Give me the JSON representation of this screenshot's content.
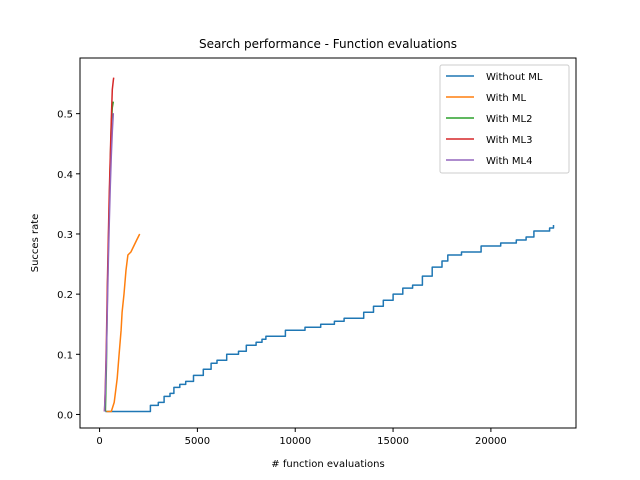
{
  "chart_data": {
    "type": "line",
    "title": "Search performance - Function evaluations",
    "xlabel": "# function evaluations",
    "ylabel": "Succes rate",
    "xlim": [
      -1000,
      24350
    ],
    "ylim": [
      -0.0225,
      0.5925
    ],
    "xticks": [
      0,
      5000,
      10000,
      15000,
      20000
    ],
    "xtick_labels": [
      "0",
      "5000",
      "10000",
      "15000",
      "20000"
    ],
    "yticks": [
      0.0,
      0.1,
      0.2,
      0.3,
      0.4,
      0.5
    ],
    "ytick_labels": [
      "0.0",
      "0.1",
      "0.2",
      "0.3",
      "0.4",
      "0.5"
    ],
    "grid": false,
    "legend_position": "top-right",
    "series": [
      {
        "name": "Without ML",
        "color": "#1f77b4",
        "step": true,
        "x": [
          300,
          2300,
          2600,
          3000,
          3300,
          3600,
          3800,
          4100,
          4400,
          4800,
          5300,
          5700,
          6000,
          6500,
          7100,
          7500,
          8000,
          8300,
          8500,
          9500,
          10500,
          11300,
          12000,
          12500,
          13500,
          14000,
          14500,
          15000,
          15500,
          16000,
          16500,
          17000,
          17500,
          17800,
          18500,
          19500,
          20500,
          21300,
          21800,
          22200,
          23000,
          23200
        ],
        "y": [
          0.005,
          0.005,
          0.015,
          0.02,
          0.03,
          0.035,
          0.045,
          0.05,
          0.055,
          0.065,
          0.075,
          0.085,
          0.09,
          0.1,
          0.105,
          0.115,
          0.12,
          0.125,
          0.13,
          0.14,
          0.145,
          0.15,
          0.155,
          0.16,
          0.17,
          0.18,
          0.19,
          0.2,
          0.21,
          0.215,
          0.23,
          0.245,
          0.255,
          0.265,
          0.27,
          0.28,
          0.285,
          0.29,
          0.295,
          0.305,
          0.31,
          0.315
        ]
      },
      {
        "name": "With ML",
        "color": "#ff7f0e",
        "step": false,
        "x": [
          350,
          600,
          750,
          900,
          1000,
          1100,
          1150,
          1250,
          1350,
          1450,
          1600,
          1750,
          1900,
          2050
        ],
        "y": [
          0.005,
          0.005,
          0.02,
          0.06,
          0.1,
          0.14,
          0.17,
          0.2,
          0.24,
          0.265,
          0.27,
          0.28,
          0.29,
          0.3
        ]
      },
      {
        "name": "With ML2",
        "color": "#2ca02c",
        "step": false,
        "x": [
          300,
          350,
          400,
          450,
          500,
          550,
          600,
          650,
          700
        ],
        "y": [
          0.005,
          0.08,
          0.2,
          0.28,
          0.35,
          0.42,
          0.48,
          0.51,
          0.52
        ]
      },
      {
        "name": "With ML3",
        "color": "#d62728",
        "step": false,
        "x": [
          250,
          300,
          350,
          400,
          450,
          500,
          550,
          600,
          650,
          700,
          720
        ],
        "y": [
          0.005,
          0.05,
          0.12,
          0.22,
          0.3,
          0.37,
          0.43,
          0.49,
          0.54,
          0.555,
          0.56
        ]
      },
      {
        "name": "With ML4",
        "color": "#9467bd",
        "step": false,
        "x": [
          250,
          300,
          350,
          400,
          450,
          500,
          550,
          600,
          650,
          700,
          730
        ],
        "y": [
          0.005,
          0.04,
          0.1,
          0.18,
          0.26,
          0.32,
          0.38,
          0.43,
          0.47,
          0.5,
          0.5
        ]
      }
    ]
  }
}
